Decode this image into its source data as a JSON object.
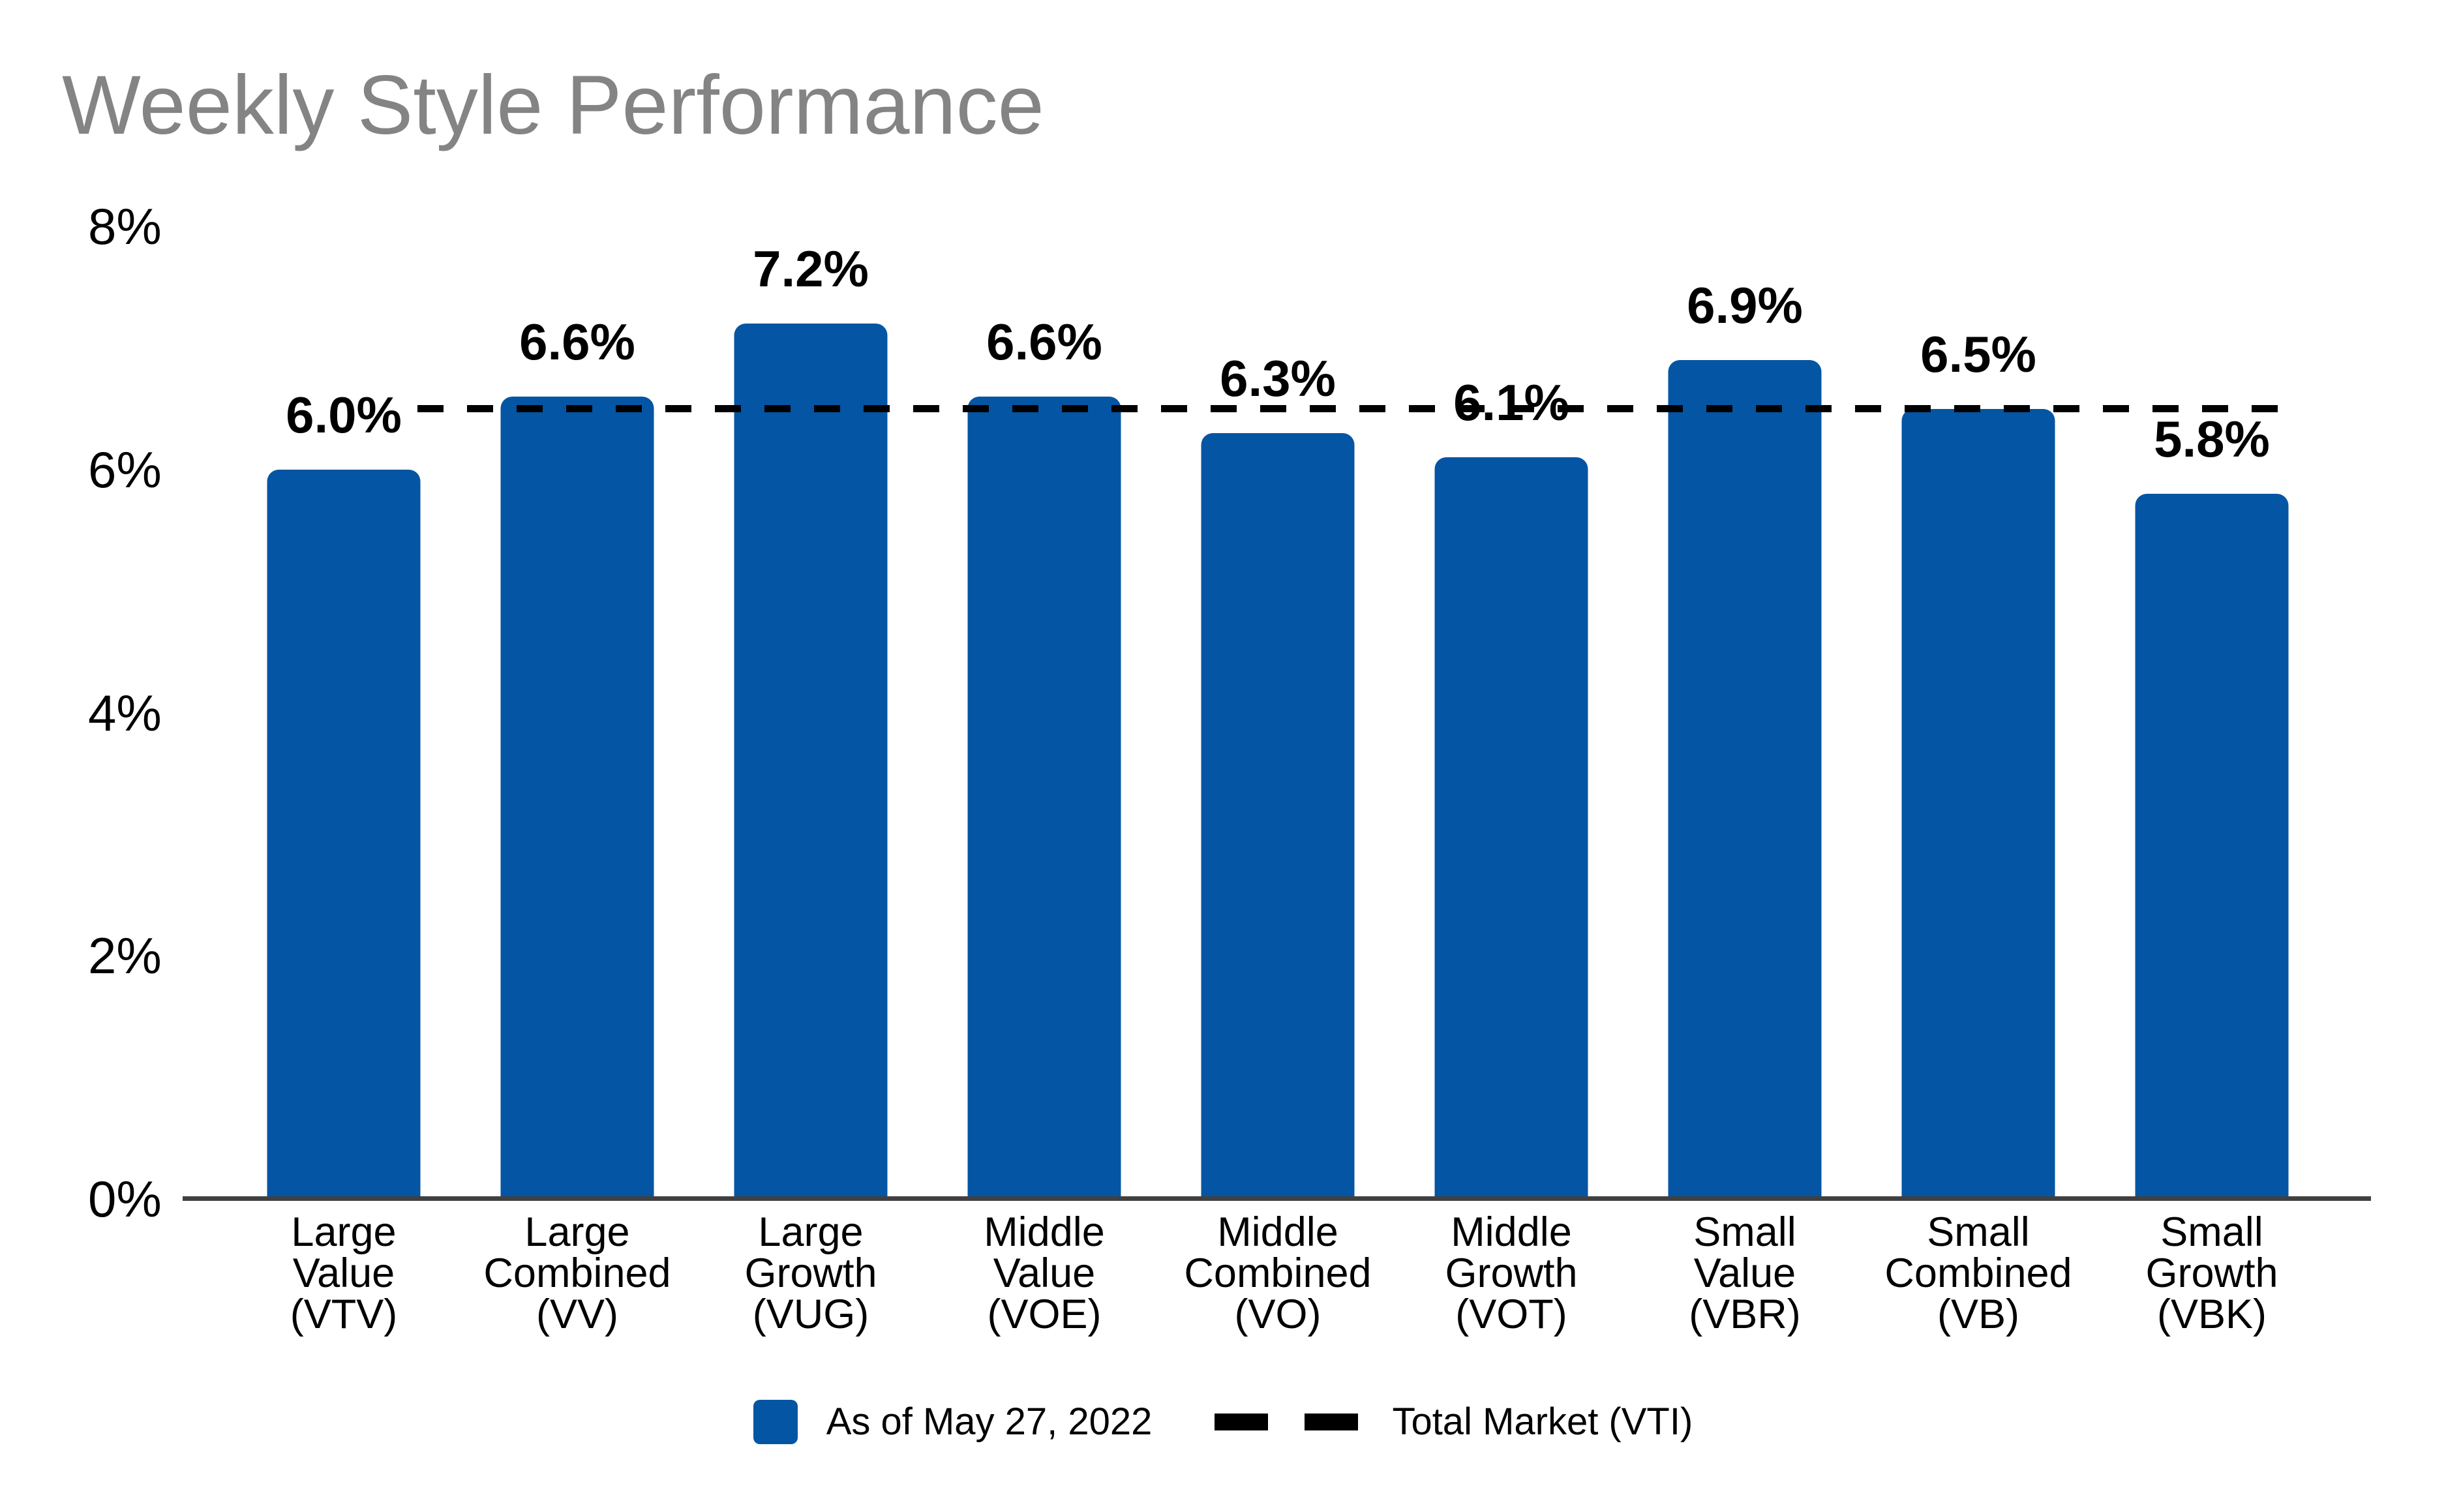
{
  "title": "Weekly Style Performance",
  "legend": {
    "bar_label": "As of May 27, 2022",
    "line_label": "Total Market (VTI)"
  },
  "colors": {
    "bar": "#0455A4",
    "title_text": "#848484",
    "axis_line": "#404040",
    "text": "#000000",
    "dash_line": "#000000"
  },
  "chart_data": {
    "type": "bar",
    "title": "Weekly Style Performance",
    "categories": [
      [
        "Large",
        "Value",
        "(VTV)"
      ],
      [
        "Large",
        "Combined",
        "(VV)"
      ],
      [
        "Large",
        "Growth",
        "(VUG)"
      ],
      [
        "Middle",
        "Value",
        "(VOE)"
      ],
      [
        "Middle",
        "Combined",
        "(VO)"
      ],
      [
        "Middle",
        "Growth",
        "(VOT)"
      ],
      [
        "Small",
        "Value",
        "(VBR)"
      ],
      [
        "Small",
        "Combined",
        "(VB)"
      ],
      [
        "Small",
        "Growth",
        "(VBK)"
      ]
    ],
    "tickers": [
      "VTV",
      "VV",
      "VUG",
      "VOE",
      "VO",
      "VOT",
      "VBR",
      "VB",
      "VBK"
    ],
    "values": [
      6.0,
      6.6,
      7.2,
      6.6,
      6.3,
      6.1,
      6.9,
      6.5,
      5.8
    ],
    "value_labels": [
      "6.0%",
      "6.6%",
      "7.2%",
      "6.6%",
      "6.3%",
      "6.1%",
      "6.9%",
      "6.5%",
      "5.8%"
    ],
    "series_name": "As of May 27, 2022",
    "reference_line": {
      "label": "Total Market (VTI)",
      "value": 6.5,
      "style": "dashed"
    },
    "ylim": [
      0,
      8
    ],
    "yticks": [
      0,
      2,
      4,
      6,
      8
    ],
    "ytick_labels": [
      "0%",
      "2%",
      "4%",
      "6%",
      "8%"
    ],
    "xlabel": "",
    "ylabel": "",
    "grid": false,
    "legend_position": "bottom"
  }
}
